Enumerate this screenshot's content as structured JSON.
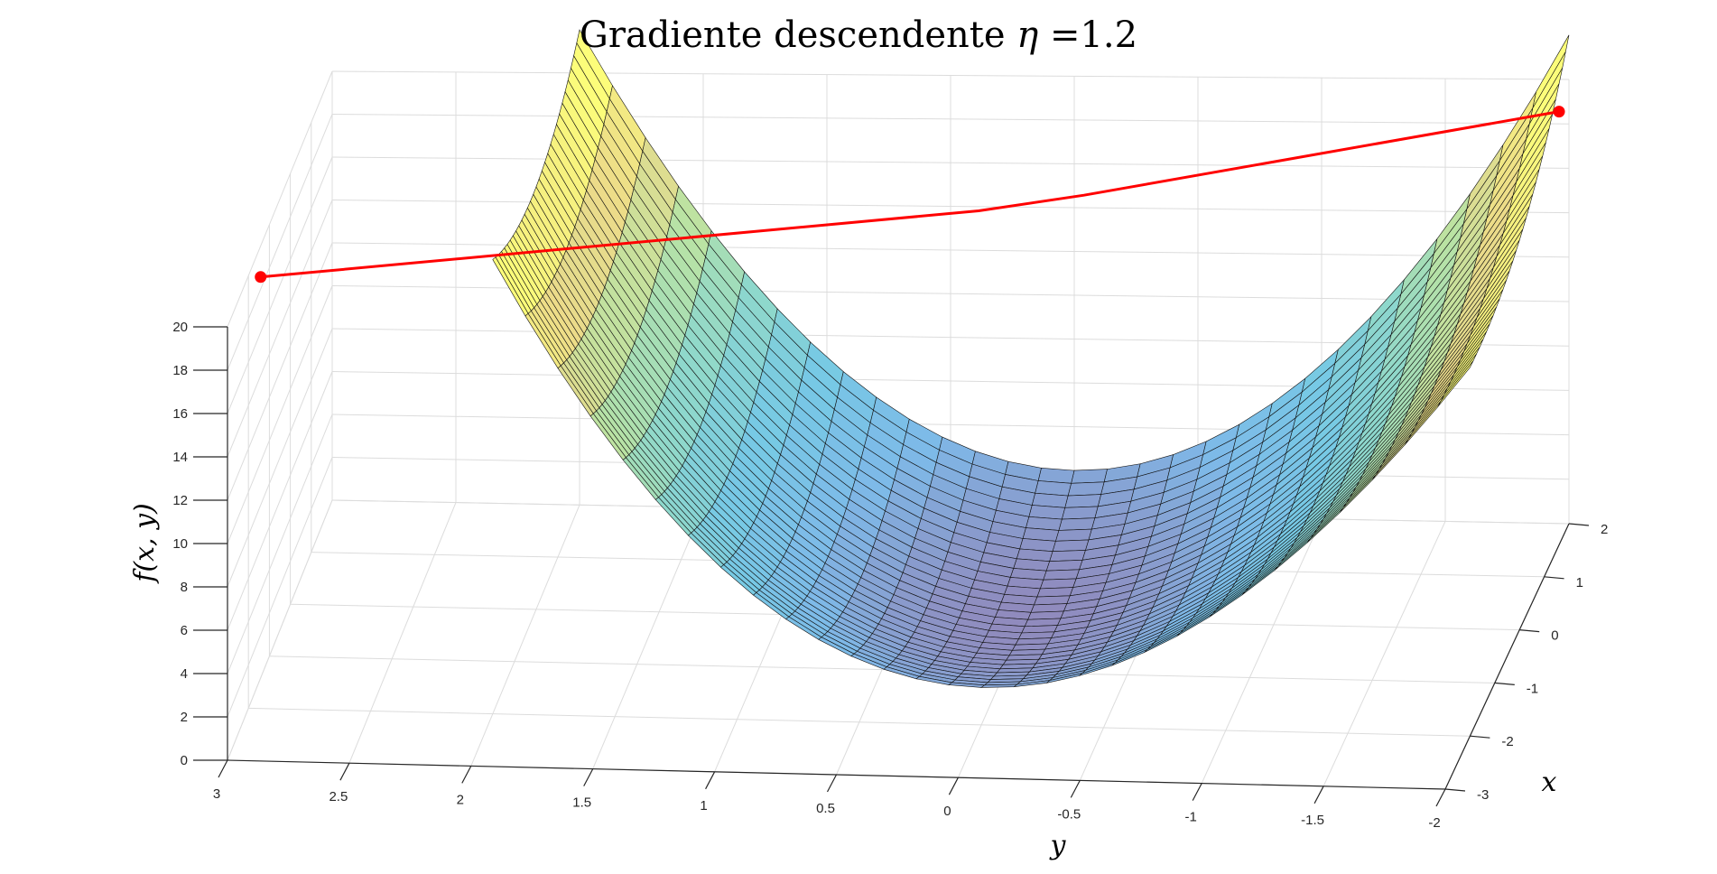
{
  "chart_data": {
    "type": "surface3d",
    "title": "Gradiente descendente",
    "title_symbol": "η",
    "title_value": "=1.2",
    "xlabel": "x",
    "ylabel": "y",
    "zlabel": "f(x, y)",
    "x_ticks": [
      2,
      1,
      0,
      -1,
      -2,
      -3
    ],
    "x_tick_labels": [
      "2",
      "1",
      "0",
      "-1",
      "-2",
      "-3"
    ],
    "y_ticks": [
      3,
      2.5,
      2,
      1.5,
      1,
      0.5,
      0,
      -0.5,
      -1,
      -1.5,
      -2
    ],
    "y_tick_labels": [
      "3",
      "2.5",
      "2",
      "1.5",
      "1",
      "0.5",
      "0",
      "-0.5",
      "-1",
      "-1.5",
      "-2"
    ],
    "z_ticks": [
      0,
      2,
      4,
      6,
      8,
      10,
      12,
      14,
      16,
      18,
      20
    ],
    "z_tick_labels": [
      "0",
      "2",
      "4",
      "6",
      "8",
      "10",
      "12",
      "14",
      "16",
      "18",
      "20"
    ],
    "xlim": [
      -3,
      2
    ],
    "ylim": [
      -2,
      3
    ],
    "zlim": [
      0,
      20
    ],
    "grid": true,
    "colormap": "parula",
    "surface": {
      "x_range": [
        -2,
        2
      ],
      "y_range": [
        -2,
        2
      ],
      "description": "convex quadratic bowl, peaks ~20 at the y = ±2 edges, minimum near 0 at y = 0"
    },
    "path": {
      "color": "#ff0000",
      "points": [
        {
          "x": -2,
          "y": 2.95,
          "z": 20
        },
        {
          "x": 0,
          "y": 0.2,
          "z": 20
        },
        {
          "x": 0.3,
          "y": -0.2,
          "z": 20
        },
        {
          "x": 1.6,
          "y": -2,
          "z": 20
        }
      ],
      "marker_indices": [
        0,
        3
      ]
    }
  }
}
